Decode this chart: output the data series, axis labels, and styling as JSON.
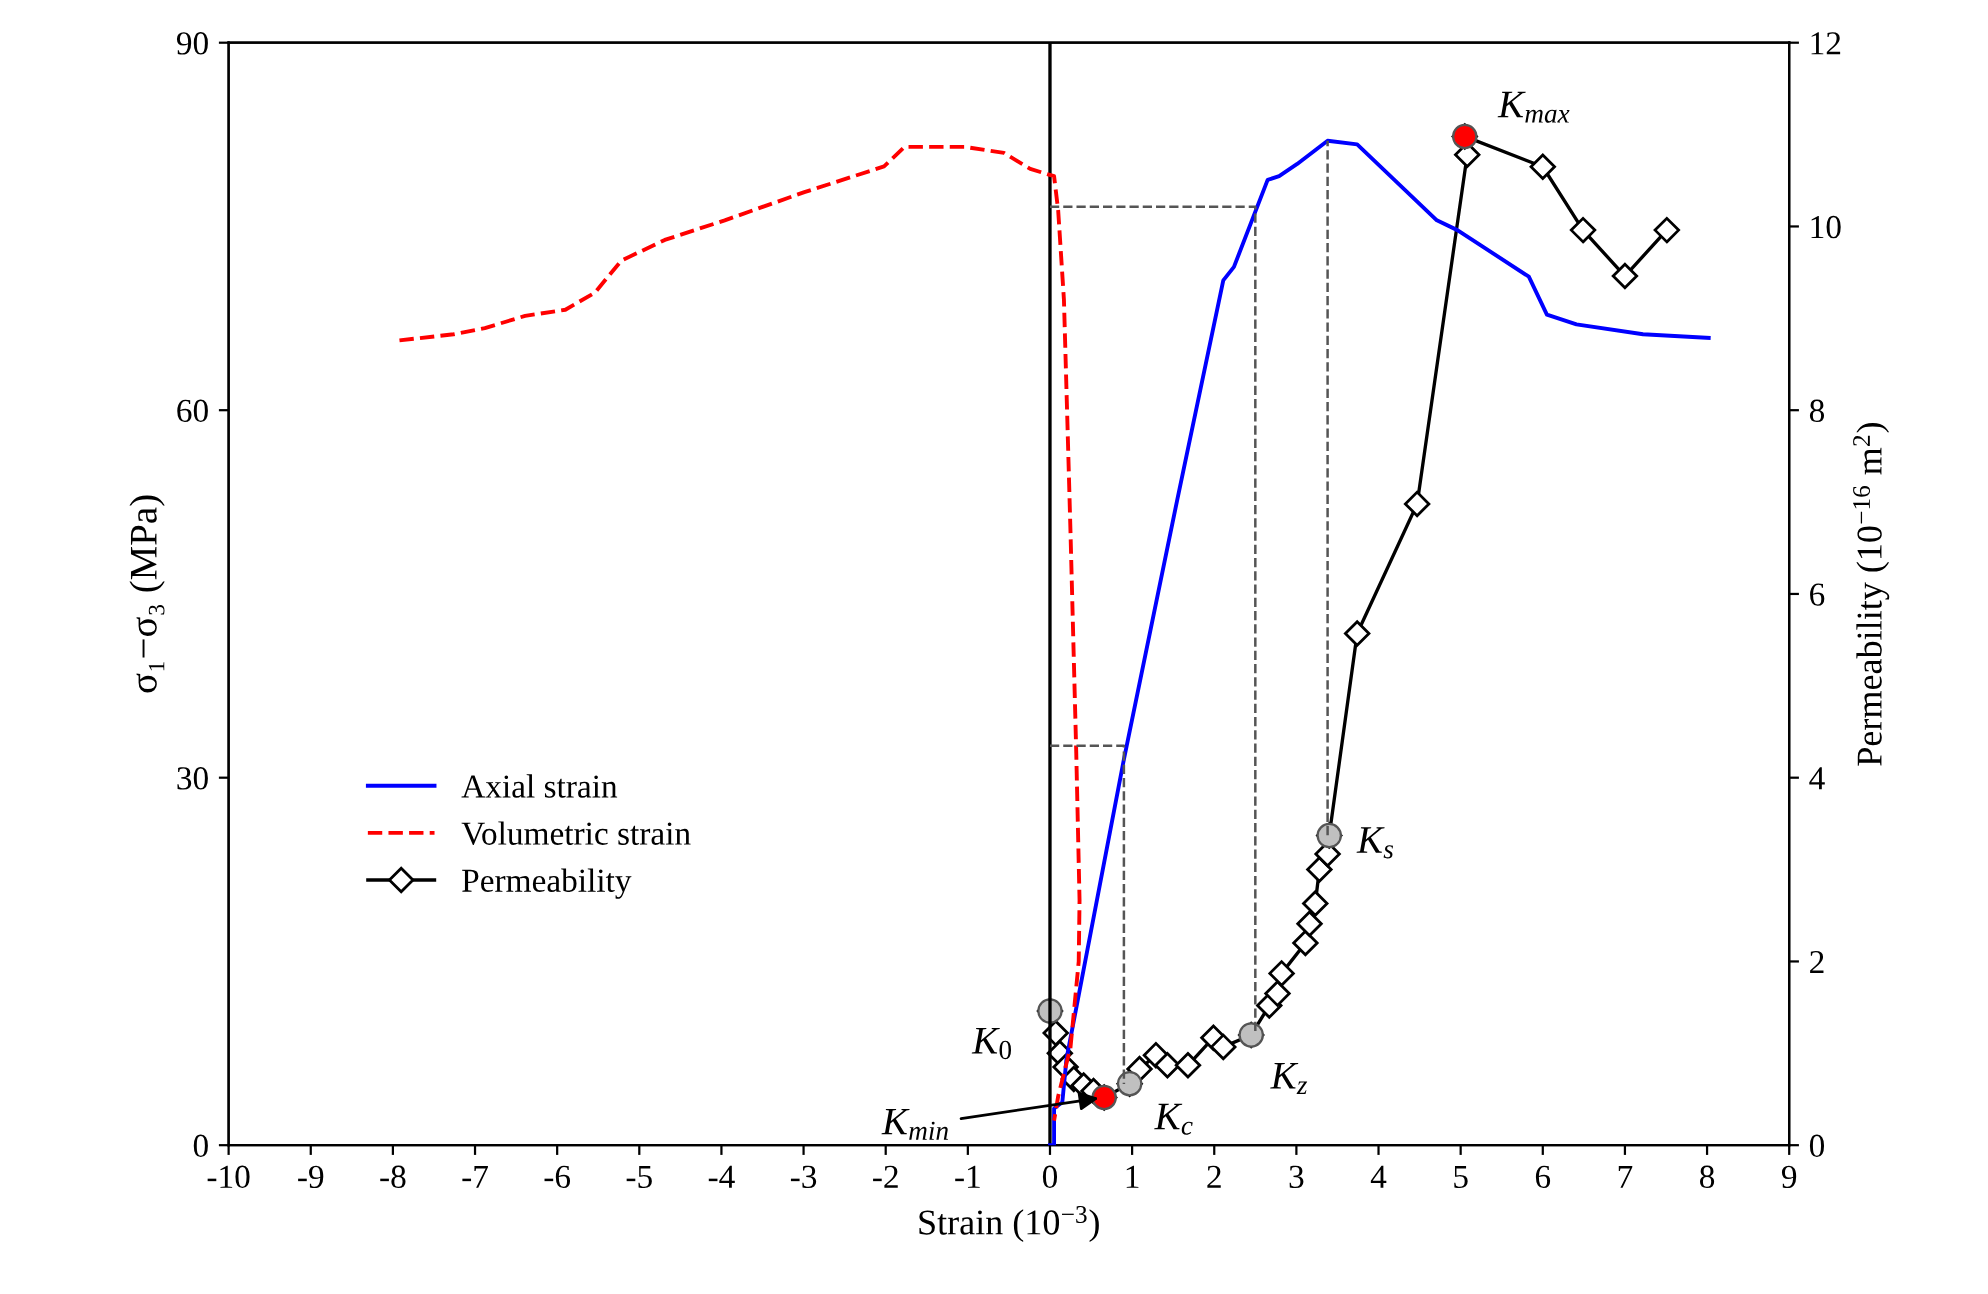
{
  "chart_data": {
    "type": "line",
    "xlabel": "Strain (10$^{−3}$)",
    "ylabel": "σ₁−σ₃ (MPa)",
    "y2label": "Permeability (10$^{−16}$ m$^{2}$)",
    "xlim": [
      -10,
      9
    ],
    "xticks": [
      -10,
      -9,
      -8,
      -7,
      -6,
      -5,
      -4,
      -3,
      -2,
      -1,
      0,
      1,
      2,
      3,
      4,
      5,
      6,
      7,
      8,
      9
    ],
    "ylim": [
      0,
      90
    ],
    "yticks": [
      0,
      30,
      60,
      90
    ],
    "y2lim": [
      0,
      12
    ],
    "y2ticks": [
      0,
      2,
      4,
      6,
      8,
      10,
      12
    ],
    "grid": false,
    "legend": "center left",
    "ref_lines": [
      {
        "axis": "x",
        "value": 0,
        "color": "#000000",
        "line_style": "solid"
      }
    ],
    "series": [
      {
        "name": "Axial strain",
        "color": "#0000ff",
        "line_style": "solid",
        "marker": "none",
        "x": [
          0,
          0.05,
          0.05,
          0.15,
          0.2,
          0.9,
          1.55,
          2.11,
          2.24,
          2.65,
          2.79,
          3.01,
          3.38,
          3.74,
          4.71,
          4.96,
          5.83,
          6.05,
          6.41,
          7.22,
          8.02
        ],
        "values": [
          0,
          0,
          3,
          3.5,
          7,
          31.5,
          52.7,
          70.6,
          71.7,
          78.8,
          79.1,
          80.1,
          82.0,
          81.7,
          75.5,
          74.7,
          70.9,
          67.8,
          67.0,
          66.2,
          65.9
        ]
      },
      {
        "name": "Volumetric strain",
        "color": "#ff0000",
        "line_style": "dashed",
        "marker": "none",
        "x": [
          -7.92,
          -7.26,
          -6.88,
          -6.39,
          -5.9,
          -5.54,
          -5.22,
          -4.69,
          -3.96,
          -2.99,
          -2.02,
          -1.77,
          -1.04,
          -0.56,
          -0.24,
          0.05,
          0.1,
          0.17,
          0.25,
          0.32,
          0.36,
          0.35,
          0.25,
          0.1,
          0.05
        ],
        "values": [
          65.7,
          66.2,
          66.7,
          67.7,
          68.2,
          69.6,
          72.2,
          73.9,
          75.5,
          77.8,
          79.9,
          81.5,
          81.5,
          81.0,
          79.7,
          79.1,
          76.3,
          69,
          50,
          32,
          20,
          15,
          8,
          4,
          2
        ]
      },
      {
        "name": "Permeability",
        "color": "#000000",
        "axis": "y2",
        "line_style": "solid",
        "marker": "diamond",
        "x": [
          0,
          0.07,
          0.12,
          0.19,
          0.29,
          0.41,
          0.53,
          0.66,
          0.97,
          1.09,
          1.29,
          1.43,
          1.68,
          1.99,
          2.11,
          2.45,
          2.67,
          2.77,
          2.82,
          3.11,
          3.16,
          3.23,
          3.28,
          3.38,
          3.4,
          3.74,
          4.47,
          5.08,
          5.05,
          6.0,
          6.49,
          7.0,
          7.51
        ],
        "values": [
          1.46,
          1.22,
          1.0,
          0.85,
          0.72,
          0.65,
          0.59,
          0.52,
          0.67,
          0.83,
          0.98,
          0.87,
          0.87,
          1.17,
          1.07,
          1.2,
          1.52,
          1.65,
          1.87,
          2.2,
          2.41,
          2.63,
          3.0,
          3.17,
          3.37,
          5.57,
          6.98,
          10.78,
          10.98,
          10.65,
          9.96,
          9.46,
          9.96
        ]
      },
      {
        "type": "scatter",
        "color": "#c0c0c0",
        "axis": "y2",
        "marker": "circle",
        "x": [
          0,
          0.97,
          2.45,
          3.4
        ],
        "values": [
          1.46,
          0.67,
          1.2,
          3.37
        ]
      },
      {
        "type": "scatter",
        "color": "#ff0000",
        "axis": "y2",
        "marker": "circle",
        "x": [
          0.66,
          5.05
        ],
        "values": [
          0.52,
          10.98
        ]
      },
      {
        "color": "#555555",
        "line_style": "dashed",
        "marker": "none",
        "x": [
          0,
          0.9,
          0.9
        ],
        "values": [
          32.6,
          32.6,
          5.0
        ]
      },
      {
        "color": "#555555",
        "line_style": "dashed",
        "marker": "none",
        "x": [
          0,
          2.5,
          2.5
        ],
        "values": [
          76.6,
          76.6,
          9.0
        ]
      },
      {
        "color": "#555555",
        "line_style": "dashed",
        "marker": "none",
        "x": [
          3.38,
          3.38
        ],
        "values": [
          25.3,
          82.0
        ]
      }
    ],
    "annotations": [
      {
        "text": "K$_{0}$",
        "x": 0,
        "y": 10.95
      },
      {
        "text": "K$_{min}$",
        "x": 0.66,
        "y": 3.9
      },
      {
        "text": "K$_{c}$",
        "x": 0.97,
        "y": 5.0
      },
      {
        "text": "K$_{z}$",
        "x": 2.45,
        "y": 9.0
      },
      {
        "text": "K$_{s}$",
        "x": 3.4,
        "y": 25.3
      },
      {
        "text": "K$_{max}$",
        "x": 5.05,
        "y": 82.4
      }
    ]
  }
}
